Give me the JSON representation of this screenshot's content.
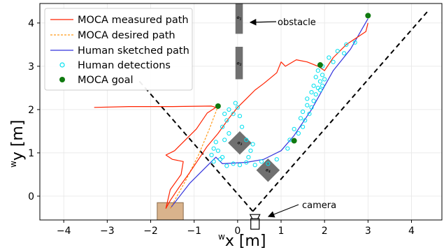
{
  "chart_data": {
    "type": "line",
    "xlabel_prefix": "w",
    "xlabel_main": "x [m]",
    "ylabel_prefix": "w",
    "ylabel_main": "y [m]",
    "xlim": [
      -4.55,
      4.7
    ],
    "ylim": [
      -0.55,
      4.45
    ],
    "x_ticks": [
      -4,
      -3,
      -2,
      -1,
      0,
      1,
      2,
      3,
      4
    ],
    "y_ticks": [
      0,
      1,
      2,
      3,
      4
    ],
    "grid": true,
    "legend_position": "top-left",
    "colors": {
      "measured": "#ff2200",
      "desired": "#ff9a1a",
      "sketched": "#3333dd",
      "detections": "#00e0f0",
      "goal": "#107a10",
      "obstacle": "#707070",
      "fov": "#000000",
      "start_box": "#d9b38c"
    },
    "series": [
      {
        "name": "MOCA measured path",
        "style": "solid",
        "points": [
          [
            -3.3,
            2.05
          ],
          [
            -2.5,
            2.07
          ],
          [
            -1.5,
            2.07
          ],
          [
            -0.6,
            2.08
          ],
          [
            -0.5,
            2.05
          ],
          [
            -0.7,
            1.92
          ],
          [
            -0.95,
            1.55
          ],
          [
            -1.2,
            1.3
          ],
          [
            -1.45,
            1.05
          ],
          [
            -1.65,
            0.95
          ],
          [
            -1.5,
            0.85
          ],
          [
            -1.25,
            0.8
          ],
          [
            -1.3,
            0.5
          ],
          [
            -1.55,
            0.15
          ],
          [
            -1.65,
            -0.28
          ],
          [
            -1.55,
            -0.1
          ],
          [
            -1.35,
            0.2
          ],
          [
            -1.1,
            0.55
          ],
          [
            -0.9,
            0.85
          ],
          [
            -0.7,
            1.15
          ],
          [
            -0.45,
            1.45
          ],
          [
            -0.2,
            1.8
          ],
          [
            0.0,
            2.05
          ],
          [
            0.2,
            2.25
          ],
          [
            0.4,
            2.45
          ],
          [
            0.6,
            2.6
          ],
          [
            0.9,
            2.85
          ],
          [
            1.0,
            3.1
          ],
          [
            1.1,
            3.0
          ],
          [
            1.35,
            3.15
          ],
          [
            1.6,
            3.1
          ],
          [
            1.85,
            3.0
          ],
          [
            2.0,
            2.9
          ],
          [
            2.2,
            3.2
          ],
          [
            2.5,
            3.5
          ],
          [
            2.8,
            3.7
          ],
          [
            2.95,
            3.8
          ],
          [
            3.0,
            4.0
          ]
        ]
      },
      {
        "name": "MOCA desired path",
        "style": "dashed",
        "points": [
          [
            -1.55,
            -0.28
          ],
          [
            -1.2,
            0.35
          ],
          [
            -0.9,
            0.95
          ],
          [
            -0.65,
            1.55
          ],
          [
            -0.45,
            2.08
          ]
        ]
      },
      {
        "name": "Human sketched path",
        "style": "solid",
        "points": [
          [
            -1.55,
            -0.28
          ],
          [
            -1.1,
            0.3
          ],
          [
            -0.5,
            0.9
          ],
          [
            -0.35,
            0.75
          ],
          [
            0.2,
            0.78
          ],
          [
            0.6,
            0.85
          ],
          [
            1.0,
            1.05
          ],
          [
            1.3,
            1.4
          ],
          [
            1.7,
            2.0
          ],
          [
            2.2,
            2.9
          ],
          [
            2.6,
            3.4
          ],
          [
            3.0,
            4.1
          ]
        ]
      }
    ],
    "detections": {
      "name": "Human detections",
      "points": [
        [
          -0.55,
          0.8
        ],
        [
          -0.6,
          0.95
        ],
        [
          -0.55,
          1.1
        ],
        [
          -0.5,
          1.25
        ],
        [
          -0.35,
          0.9
        ],
        [
          -0.25,
          0.7
        ],
        [
          -0.1,
          0.75
        ],
        [
          0.05,
          0.72
        ],
        [
          0.2,
          0.78
        ],
        [
          0.4,
          0.72
        ],
        [
          0.55,
          0.8
        ],
        [
          0.7,
          0.75
        ],
        [
          -0.3,
          1.3
        ],
        [
          -0.2,
          1.45
        ],
        [
          -0.35,
          1.6
        ],
        [
          -0.25,
          1.75
        ],
        [
          -0.1,
          1.9
        ],
        [
          0.0,
          2.05
        ],
        [
          -0.05,
          2.15
        ],
        [
          -0.2,
          2.0
        ],
        [
          -0.3,
          1.9
        ],
        [
          0.05,
          1.85
        ],
        [
          0.1,
          1.6
        ],
        [
          0.2,
          1.3
        ],
        [
          0.3,
          1.05
        ],
        [
          0.25,
          0.9
        ],
        [
          0.35,
          1.2
        ],
        [
          1.2,
          1.3
        ],
        [
          1.4,
          1.45
        ],
        [
          1.5,
          1.6
        ],
        [
          1.55,
          1.75
        ],
        [
          1.65,
          1.9
        ],
        [
          1.7,
          2.05
        ],
        [
          1.75,
          2.2
        ],
        [
          1.8,
          2.35
        ],
        [
          1.85,
          2.5
        ],
        [
          1.9,
          2.65
        ],
        [
          1.95,
          2.8
        ],
        [
          1.8,
          2.75
        ],
        [
          1.75,
          2.55
        ],
        [
          1.7,
          2.4
        ],
        [
          1.6,
          2.25
        ],
        [
          1.6,
          2.1
        ],
        [
          1.5,
          1.95
        ],
        [
          1.45,
          1.8
        ],
        [
          1.85,
          2.9
        ],
        [
          1.95,
          3.0
        ],
        [
          2.1,
          3.2
        ],
        [
          2.3,
          3.35
        ],
        [
          2.5,
          3.5
        ],
        [
          2.7,
          3.55
        ],
        [
          2.45,
          3.3
        ],
        [
          2.2,
          3.1
        ],
        [
          1.3,
          1.55
        ],
        [
          1.15,
          1.1
        ],
        [
          1.95,
          2.55
        ],
        [
          2.0,
          2.7
        ],
        [
          1.9,
          2.45
        ],
        [
          0.9,
          0.85
        ],
        [
          -0.45,
          1.05
        ],
        [
          -0.4,
          0.85
        ]
      ]
    },
    "goals": {
      "name": "MOCA goal",
      "points": [
        [
          -0.45,
          2.08
        ],
        [
          1.3,
          1.28
        ],
        [
          1.9,
          3.03
        ],
        [
          3.0,
          4.17
        ]
      ]
    },
    "obstacles": [
      {
        "label": "o",
        "sub": "1",
        "shape": "rect",
        "x0": -0.05,
        "x1": 0.12,
        "y0": 3.75,
        "y1": 4.5
      },
      {
        "label": "o",
        "sub": "2",
        "shape": "rect",
        "x0": -0.05,
        "x1": 0.12,
        "y0": 2.7,
        "y1": 3.45
      },
      {
        "label": "o",
        "sub": "3",
        "shape": "diamond",
        "cx": 0.05,
        "cy": 1.23,
        "r": 0.27
      },
      {
        "label": "o",
        "sub": "4",
        "shape": "diamond",
        "cx": 0.7,
        "cy": 0.6,
        "r": 0.27
      }
    ],
    "fov": {
      "apex": [
        0.35,
        -0.35
      ],
      "left_end": [
        -2.3,
        2.7
      ],
      "right_end": [
        4.4,
        4.3
      ]
    },
    "camera": {
      "x": 0.4,
      "y": -0.65
    },
    "start_box": {
      "x0": -1.85,
      "x1": -1.25,
      "y0": -0.55,
      "y1": -0.15
    },
    "annotations": {
      "obstacle_text": "obstacle",
      "camera_text": "camera"
    }
  }
}
